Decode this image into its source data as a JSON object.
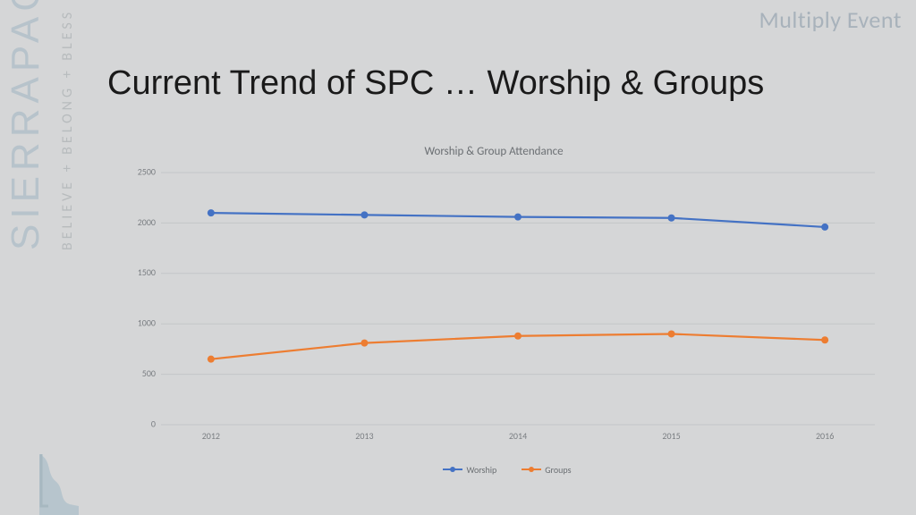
{
  "corner_label": "Multiply Event",
  "brand": {
    "main": "SIERRAPACIFIC",
    "sub": "BELIEVE + BELONG + BLESS"
  },
  "title": "Current Trend of SPC … Worship & Groups",
  "chart": {
    "type": "line",
    "title": "Worship & Group Attendance",
    "ylim": [
      0,
      2500
    ],
    "ytick_step": 500,
    "categories": [
      "2012",
      "2013",
      "2014",
      "2015",
      "2016"
    ],
    "gridline_color": "#c3c6c8",
    "label_color": "#7a7e82",
    "label_fontsize": 10,
    "title_fontsize": 13,
    "title_color": "#6b6f73",
    "line_width": 2.2,
    "marker_radius": 4,
    "series": [
      {
        "name": "Worship",
        "color": "#4472c4",
        "values": [
          2100,
          2080,
          2060,
          2050,
          1960
        ]
      },
      {
        "name": "Groups",
        "color": "#ed7d31",
        "values": [
          650,
          810,
          880,
          900,
          840
        ]
      }
    ]
  }
}
